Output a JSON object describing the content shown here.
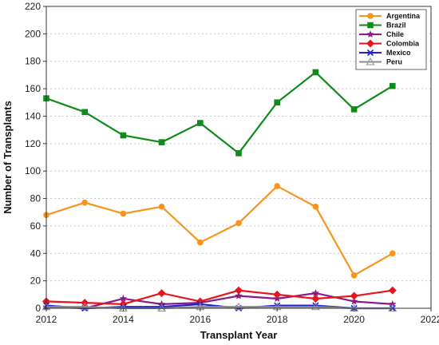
{
  "chart_data": {
    "type": "line",
    "title": "",
    "xlabel": "Transplant Year",
    "ylabel": "Number of Transplants",
    "xlim": [
      2012,
      2022
    ],
    "ylim": [
      0,
      220
    ],
    "xticks": [
      2012,
      2014,
      2016,
      2018,
      2020,
      2022
    ],
    "yticks": [
      0,
      20,
      40,
      60,
      80,
      100,
      120,
      140,
      160,
      180,
      200,
      220
    ],
    "grid": "horizontal-dotted",
    "legend_position": "top-right",
    "x": [
      2012,
      2013,
      2014,
      2015,
      2016,
      2017,
      2018,
      2019,
      2020,
      2021
    ],
    "series": [
      {
        "name": "Argentina",
        "color": "#f7941d",
        "marker": "circle",
        "values": [
          68,
          77,
          69,
          74,
          48,
          62,
          89,
          74,
          24,
          40
        ]
      },
      {
        "name": "Brazil",
        "color": "#108a1a",
        "marker": "square",
        "values": [
          153,
          143,
          126,
          121,
          135,
          113,
          150,
          172,
          145,
          162
        ]
      },
      {
        "name": "Chile",
        "color": "#8a1a8a",
        "marker": "star",
        "values": [
          1,
          0,
          7,
          3,
          4,
          9,
          7,
          11,
          5,
          3
        ]
      },
      {
        "name": "Colombia",
        "color": "#e8141b",
        "marker": "diamond",
        "values": [
          5,
          4,
          3,
          11,
          5,
          13,
          10,
          7,
          9,
          13
        ]
      },
      {
        "name": "Mexico",
        "color": "#1f1fd0",
        "marker": "x",
        "values": [
          2,
          0,
          1,
          1,
          3,
          0,
          2,
          2,
          0,
          0
        ]
      },
      {
        "name": "Peru",
        "color": "#8c8c8c",
        "marker": "triangle",
        "values": [
          1,
          1,
          0,
          0,
          1,
          1,
          1,
          1,
          0,
          0
        ]
      }
    ]
  }
}
